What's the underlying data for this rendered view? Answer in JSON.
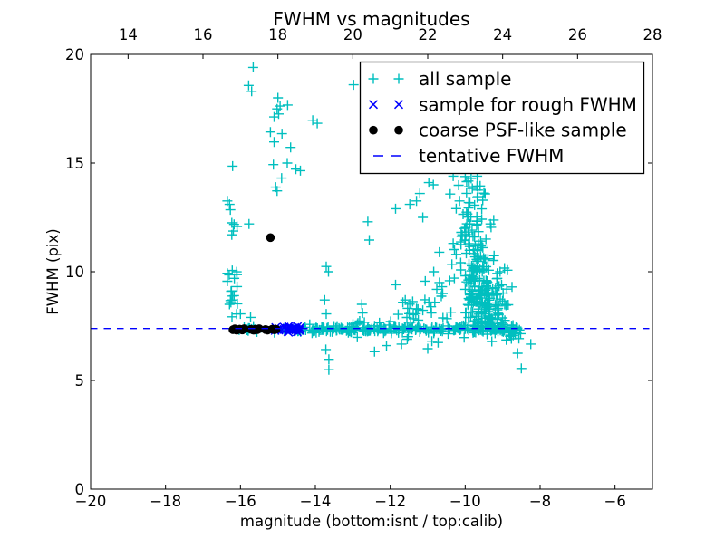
{
  "chart_data": {
    "type": "scatter",
    "title": "FWHM vs magnitudes",
    "xlabel": "magnitude (bottom:isnt / top:calib)",
    "ylabel": "FWHM (pix)",
    "xlim": [
      -20,
      -5
    ],
    "ylim": [
      0,
      20
    ],
    "top_axis_offset": 33,
    "x_ticks_bottom": {
      "values": [
        -20,
        -18,
        -16,
        -14,
        -12,
        -10,
        -8,
        -6
      ],
      "labels": [
        "−20",
        "−18",
        "−16",
        "−14",
        "−12",
        "−10",
        "−8",
        "−6"
      ]
    },
    "x_ticks_top": {
      "values": [
        14,
        16,
        18,
        20,
        22,
        24,
        26,
        28
      ],
      "labels": [
        "14",
        "16",
        "18",
        "20",
        "22",
        "24",
        "26",
        "28"
      ]
    },
    "y_ticks": {
      "values": [
        0,
        5,
        10,
        15,
        20
      ],
      "labels": [
        "0",
        "5",
        "10",
        "15",
        "20"
      ]
    },
    "tentative_fwhm": 7.39,
    "colors": {
      "all_sample": "#00bfbf",
      "rough_fwhm": "#0000ff",
      "coarse_psf": "#000000",
      "tentative_line": "#0000ff"
    },
    "series": [
      {
        "name": "all sample",
        "marker": "plus",
        "color": "#00bfbf",
        "points": [
          [
            -15.66,
            19.4
          ],
          [
            -15.78,
            18.57
          ],
          [
            -15.7,
            18.3
          ],
          [
            -15.0,
            18.0
          ],
          [
            -14.94,
            17.62
          ],
          [
            -14.74,
            17.67
          ],
          [
            -15.02,
            17.49
          ],
          [
            -14.98,
            17.26
          ],
          [
            -15.1,
            17.12
          ],
          [
            -14.07,
            16.97
          ],
          [
            -13.95,
            16.83
          ],
          [
            -15.2,
            16.43
          ],
          [
            -14.89,
            16.35
          ],
          [
            -15.1,
            15.97
          ],
          [
            -14.66,
            15.72
          ],
          [
            -16.21,
            14.86
          ],
          [
            -15.12,
            14.93
          ],
          [
            -14.75,
            15.0
          ],
          [
            -14.52,
            14.72
          ],
          [
            -14.4,
            14.65
          ],
          [
            -14.9,
            14.31
          ],
          [
            -15.06,
            13.89
          ],
          [
            -15.02,
            13.72
          ],
          [
            -16.35,
            13.26
          ],
          [
            -16.29,
            13.1
          ],
          [
            -16.27,
            12.85
          ],
          [
            -16.23,
            12.25
          ],
          [
            -16.17,
            12.18
          ],
          [
            -16.09,
            12.08
          ],
          [
            -16.19,
            11.87
          ],
          [
            -16.23,
            11.7
          ],
          [
            -15.77,
            12.2
          ],
          [
            -16.35,
            9.93
          ],
          [
            -16.3,
            9.86
          ],
          [
            -16.25,
            9.1
          ],
          [
            -16.17,
            8.9
          ],
          [
            -16.23,
            8.7
          ],
          [
            -16.29,
            8.5
          ],
          [
            -16.0,
            8.06
          ],
          [
            -15.73,
            7.9
          ],
          [
            -12.98,
            18.6
          ],
          [
            -13.71,
            10.24
          ],
          [
            -13.65,
            10.0
          ],
          [
            -13.75,
            8.7
          ],
          [
            -13.71,
            8.06
          ],
          [
            -12.6,
            12.3
          ],
          [
            -12.56,
            11.46
          ],
          [
            -11.86,
            12.9
          ],
          [
            -11.48,
            13.1
          ],
          [
            -11.3,
            13.26
          ],
          [
            -11.13,
            12.5
          ],
          [
            -12.74,
            8.1
          ],
          [
            -12.76,
            8.5
          ],
          [
            -13.72,
            6.42
          ],
          [
            -13.64,
            5.97
          ],
          [
            -13.64,
            5.49
          ],
          [
            -12.42,
            6.32
          ],
          [
            -12.1,
            6.6
          ],
          [
            -11.7,
            6.67
          ],
          [
            -11.0,
            6.46
          ],
          [
            -8.5,
            5.55
          ],
          [
            -8.25,
            6.67
          ],
          [
            -8.6,
            6.25
          ],
          [
            -8.52,
            7.15
          ],
          [
            -8.63,
            7.36
          ],
          [
            -11.21,
            13.6
          ],
          [
            -10.97,
            14.1
          ],
          [
            -10.85,
            14.0
          ],
          [
            -10.32,
            14.4
          ],
          [
            -9.68,
            14.4
          ],
          [
            -9.07,
            10.0
          ],
          [
            -8.87,
            10.07
          ],
          [
            -8.75,
            9.3
          ],
          [
            -11.6,
            8.7
          ],
          [
            -11.3,
            8.3
          ],
          [
            -10.97,
            8.6
          ],
          [
            -10.6,
            9.0
          ],
          [
            -10.84,
            10.0
          ],
          [
            -10.24,
            10.8
          ],
          [
            -10.69,
            10.9
          ],
          [
            -11.86,
            9.4
          ]
        ],
        "clusters": [
          {
            "n": 215,
            "x": {
              "dist": "uniform",
              "min": -14.48,
              "max": -8.6
            },
            "y": {
              "dist": "normal",
              "mean": 7.35,
              "sd": 0.085,
              "min": 7.05,
              "max": 7.7
            }
          },
          {
            "n": 30,
            "x": {
              "dist": "uniform",
              "min": -13.2,
              "max": -8.9
            },
            "y": {
              "dist": "normal",
              "mean": 7.35,
              "sd": 0.3,
              "min": 6.4,
              "max": 8.5
            }
          },
          {
            "n": 26,
            "x": {
              "dist": "uniform",
              "min": -9.35,
              "max": -8.55
            },
            "y": {
              "dist": "normal",
              "mean": 7.3,
              "sd": 0.2,
              "min": 6.65,
              "max": 7.9
            }
          },
          {
            "n": 185,
            "x": {
              "dist": "normal",
              "mean": -9.48,
              "sd": 0.26
            },
            "y": {
              "dist": "halfnormal",
              "base": 7.5,
              "sd": 2.45,
              "max": 14.6
            },
            "shear": {
              "k": -0.062,
              "yref": 7.5
            },
            "xclip": [
              -10.45,
              -8.95
            ]
          },
          {
            "n": 38,
            "x": {
              "dist": "normal",
              "mean": -9.48,
              "sd": 0.27
            },
            "y": {
              "dist": "normal",
              "mean": 11.6,
              "sd": 1.5,
              "min": 9.0,
              "max": 14.3
            },
            "shear": {
              "k": -0.062,
              "yref": 7.5
            },
            "xclip": [
              -10.45,
              -9.15
            ]
          },
          {
            "n": 10,
            "x": {
              "dist": "normal",
              "mean": -9.48,
              "sd": 0.25
            },
            "y": {
              "dist": "uniform",
              "min": 13.5,
              "max": 14.5
            },
            "shear": {
              "k": -0.062,
              "yref": 7.5
            },
            "xclip": [
              -10.4,
              -9.3
            ]
          },
          {
            "n": 22,
            "x": {
              "dist": "normal",
              "mean": -9.35,
              "sd": 0.3,
              "min": -9.9,
              "max": -8.8
            },
            "y": {
              "dist": "uniform",
              "min": 7.8,
              "max": 9.3
            }
          },
          {
            "n": 26,
            "x": {
              "dist": "normal",
              "mean": -11.0,
              "sd": 0.5,
              "min": -12.1,
              "max": -10.35
            },
            "y": {
              "dist": "halfnormal",
              "base": 7.7,
              "sd": 1.6,
              "max": 12.0
            }
          },
          {
            "n": 13,
            "x": {
              "dist": "normal",
              "mean": -16.19,
              "sd": 0.07,
              "min": -16.38,
              "max": -16.0
            },
            "y": {
              "dist": "uniform",
              "min": 7.35,
              "max": 10.1
            }
          },
          {
            "n": 22,
            "x": {
              "dist": "uniform",
              "min": -16.3,
              "max": -14.45
            },
            "y": {
              "dist": "normal",
              "mean": 7.34,
              "sd": 0.07,
              "min": 7.1,
              "max": 7.6
            }
          }
        ]
      },
      {
        "name": "sample for rough FWHM",
        "marker": "x",
        "color": "#0000ff",
        "points": [],
        "clusters": [
          {
            "n": 34,
            "x": {
              "dist": "uniform",
              "min": -15.08,
              "max": -14.36
            },
            "y": {
              "dist": "normal",
              "mean": 7.36,
              "sd": 0.06,
              "min": 7.15,
              "max": 7.6
            }
          }
        ]
      },
      {
        "name": "coarse PSF-like sample",
        "marker": "dot",
        "color": "#000000",
        "points": [
          [
            -16.2,
            7.33
          ],
          [
            -16.15,
            7.37
          ],
          [
            -16.1,
            7.31
          ],
          [
            -16.02,
            7.36
          ],
          [
            -15.95,
            7.32
          ],
          [
            -15.9,
            7.38
          ],
          [
            -15.72,
            7.35
          ],
          [
            -15.65,
            7.31
          ],
          [
            -15.6,
            7.36
          ],
          [
            -15.55,
            7.33
          ],
          [
            -15.5,
            7.38
          ],
          [
            -15.33,
            7.34
          ],
          [
            -15.28,
            7.31
          ],
          [
            -15.15,
            7.36
          ],
          [
            -15.1,
            7.33
          ],
          [
            -15.05,
            7.35
          ],
          [
            -15.2,
            11.57
          ]
        ],
        "clusters": []
      },
      {
        "name": "tentative FWHM",
        "marker": "dashed-line",
        "color": "#0000ff",
        "hline_y": 7.39
      }
    ],
    "legend": {
      "position": "upper right",
      "entries": [
        "all sample",
        "sample for rough FWHM",
        "coarse PSF-like sample",
        "tentative FWHM"
      ]
    }
  }
}
